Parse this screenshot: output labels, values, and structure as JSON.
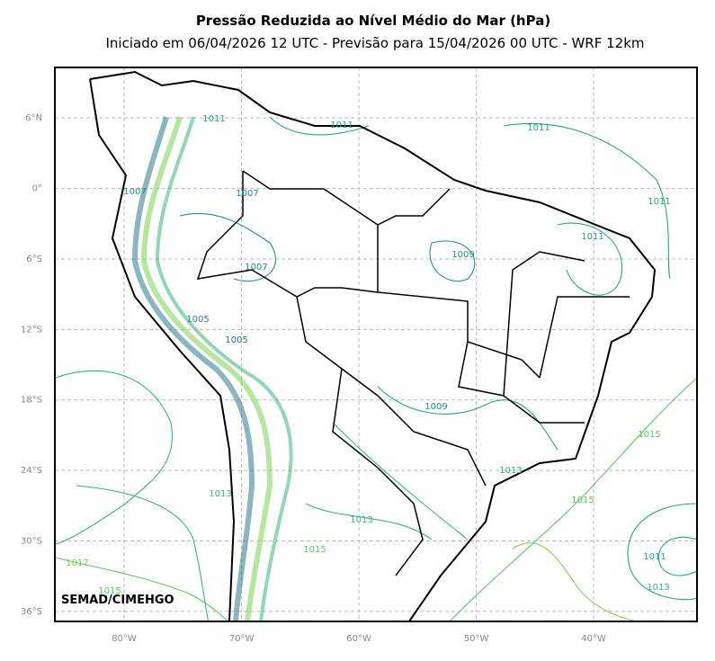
{
  "header": {
    "title": "Pressão Reduzida ao Nível Médio do Mar (hPa)",
    "subtitle": "Iniciado em 06/04/2026 12 UTC - Previsão para 15/04/2026 00 UTC - WRF 12km"
  },
  "map": {
    "lonlim": [
      -85.9,
      -31.2
    ],
    "latlim": [
      -36.85,
      10.3
    ],
    "lat_ticks": [
      {
        "value": 6,
        "label": "6°N"
      },
      {
        "value": 0,
        "label": "0°"
      },
      {
        "value": -6,
        "label": "6°S"
      },
      {
        "value": -12,
        "label": "12°S"
      },
      {
        "value": -18,
        "label": "18°S"
      },
      {
        "value": -24,
        "label": "24°S"
      },
      {
        "value": -30,
        "label": "30°S"
      },
      {
        "value": -36,
        "label": "36°S"
      }
    ],
    "lon_ticks": [
      {
        "value": -80,
        "label": "80°W"
      },
      {
        "value": -70,
        "label": "70°W"
      },
      {
        "value": -60,
        "label": "60°W"
      },
      {
        "value": -50,
        "label": "50°W"
      },
      {
        "value": -40,
        "label": "40°W"
      }
    ],
    "contour_labels": [
      "1011",
      "1011",
      "1011",
      "1011",
      "1011",
      "1011",
      "1013",
      "1013",
      "1013",
      "1013",
      "1015",
      "1015",
      "1015",
      "1015",
      "1017",
      "1009",
      "1009",
      "1007",
      "1007",
      "1007",
      "1005",
      "1005"
    ],
    "credit": "SEMAD/CIMEHGO"
  }
}
